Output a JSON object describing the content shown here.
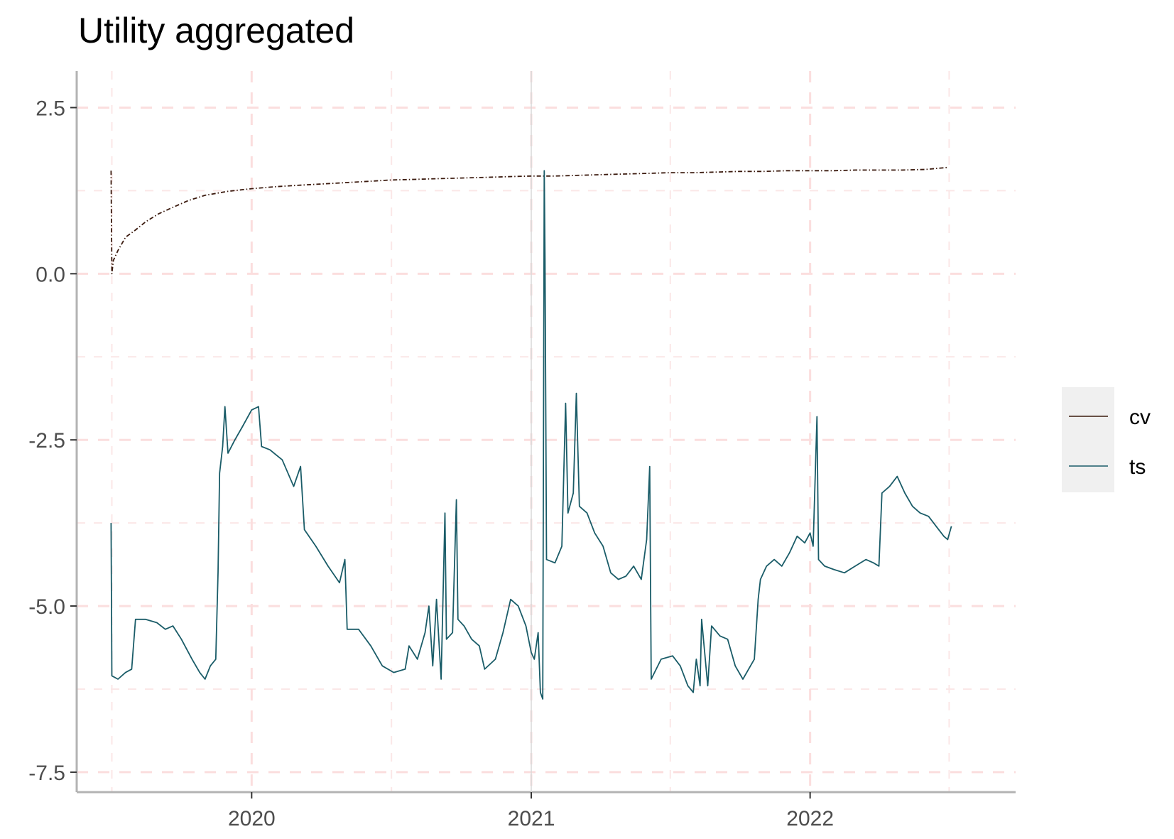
{
  "chart_data": {
    "type": "line",
    "title": "Utility aggregated",
    "xlabel": "",
    "ylabel": "",
    "xlim": [
      "2019-05-17",
      "2022-09-27"
    ],
    "ylim": [
      -7.8,
      3.05
    ],
    "x_ticks": [
      "2020",
      "2021",
      "2022"
    ],
    "y_ticks": [
      2.5,
      0.0,
      -2.5,
      -5.0,
      -7.5
    ],
    "y_tick_labels": [
      "2.5",
      "0.0",
      "-2.5",
      "-5.0",
      "-7.5"
    ],
    "grid": true,
    "legend_position": "right",
    "reference_line_x": "2021-01-01",
    "series": [
      {
        "name": "cv",
        "color": "#3b1a0e",
        "style": "dashdot",
        "points": [
          [
            "2019-07-01",
            1.55
          ],
          [
            "2019-07-02",
            0.0
          ],
          [
            "2019-07-04",
            0.2
          ],
          [
            "2019-07-10",
            0.35
          ],
          [
            "2019-07-20",
            0.55
          ],
          [
            "2019-08-01",
            0.65
          ],
          [
            "2019-08-15",
            0.78
          ],
          [
            "2019-09-01",
            0.9
          ],
          [
            "2019-09-20",
            1.0
          ],
          [
            "2019-10-10",
            1.1
          ],
          [
            "2019-11-01",
            1.18
          ],
          [
            "2019-12-01",
            1.24
          ],
          [
            "2020-01-01",
            1.28
          ],
          [
            "2020-02-01",
            1.31
          ],
          [
            "2020-03-01",
            1.33
          ],
          [
            "2020-04-01",
            1.35
          ],
          [
            "2020-05-01",
            1.37
          ],
          [
            "2020-06-01",
            1.39
          ],
          [
            "2020-07-01",
            1.41
          ],
          [
            "2020-08-01",
            1.42
          ],
          [
            "2020-09-01",
            1.43
          ],
          [
            "2020-10-01",
            1.44
          ],
          [
            "2020-11-01",
            1.45
          ],
          [
            "2020-12-01",
            1.46
          ],
          [
            "2021-01-01",
            1.47
          ],
          [
            "2021-02-01",
            1.47
          ],
          [
            "2021-03-01",
            1.48
          ],
          [
            "2021-04-01",
            1.49
          ],
          [
            "2021-05-01",
            1.5
          ],
          [
            "2021-06-01",
            1.51
          ],
          [
            "2021-07-01",
            1.52
          ],
          [
            "2021-08-01",
            1.52
          ],
          [
            "2021-09-01",
            1.53
          ],
          [
            "2021-10-01",
            1.54
          ],
          [
            "2021-11-01",
            1.54
          ],
          [
            "2021-12-01",
            1.55
          ],
          [
            "2022-01-01",
            1.55
          ],
          [
            "2022-02-01",
            1.55
          ],
          [
            "2022-03-01",
            1.56
          ],
          [
            "2022-04-01",
            1.56
          ],
          [
            "2022-05-01",
            1.56
          ],
          [
            "2022-06-01",
            1.57
          ],
          [
            "2022-07-01",
            1.6
          ]
        ]
      },
      {
        "name": "ts",
        "color": "#1a5c68",
        "style": "solid",
        "points": [
          [
            "2019-07-01",
            -3.75
          ],
          [
            "2019-07-02",
            -6.05
          ],
          [
            "2019-07-10",
            -6.1
          ],
          [
            "2019-07-20",
            -6.0
          ],
          [
            "2019-07-28",
            -5.95
          ],
          [
            "2019-08-02",
            -5.2
          ],
          [
            "2019-08-15",
            -5.2
          ],
          [
            "2019-08-30",
            -5.25
          ],
          [
            "2019-09-10",
            -5.35
          ],
          [
            "2019-09-20",
            -5.3
          ],
          [
            "2019-10-01",
            -5.5
          ],
          [
            "2019-10-15",
            -5.8
          ],
          [
            "2019-10-25",
            -6.0
          ],
          [
            "2019-11-01",
            -6.1
          ],
          [
            "2019-11-08",
            -5.9
          ],
          [
            "2019-11-15",
            -5.8
          ],
          [
            "2019-11-18",
            -4.5
          ],
          [
            "2019-11-20",
            -3.0
          ],
          [
            "2019-11-24",
            -2.6
          ],
          [
            "2019-11-27",
            -2.0
          ],
          [
            "2019-12-01",
            -2.7
          ],
          [
            "2019-12-10",
            -2.5
          ],
          [
            "2019-12-20",
            -2.3
          ],
          [
            "2020-01-01",
            -2.05
          ],
          [
            "2020-01-10",
            -2.0
          ],
          [
            "2020-01-14",
            -2.6
          ],
          [
            "2020-01-25",
            -2.65
          ],
          [
            "2020-02-10",
            -2.8
          ],
          [
            "2020-02-25",
            -3.2
          ],
          [
            "2020-03-05",
            -2.9
          ],
          [
            "2020-03-10",
            -3.85
          ],
          [
            "2020-03-25",
            -4.1
          ],
          [
            "2020-04-10",
            -4.4
          ],
          [
            "2020-04-25",
            -4.65
          ],
          [
            "2020-05-02",
            -4.3
          ],
          [
            "2020-05-05",
            -5.35
          ],
          [
            "2020-05-20",
            -5.35
          ],
          [
            "2020-06-05",
            -5.6
          ],
          [
            "2020-06-20",
            -5.9
          ],
          [
            "2020-07-05",
            -6.0
          ],
          [
            "2020-07-20",
            -5.95
          ],
          [
            "2020-07-25",
            -5.6
          ],
          [
            "2020-08-05",
            -5.8
          ],
          [
            "2020-08-15",
            -5.4
          ],
          [
            "2020-08-20",
            -5.0
          ],
          [
            "2020-08-25",
            -5.9
          ],
          [
            "2020-08-30",
            -4.9
          ],
          [
            "2020-09-05",
            -6.1
          ],
          [
            "2020-09-10",
            -3.6
          ],
          [
            "2020-09-12",
            -5.5
          ],
          [
            "2020-09-20",
            -5.4
          ],
          [
            "2020-09-25",
            -3.4
          ],
          [
            "2020-09-27",
            -5.2
          ],
          [
            "2020-10-05",
            -5.3
          ],
          [
            "2020-10-15",
            -5.5
          ],
          [
            "2020-10-25",
            -5.6
          ],
          [
            "2020-11-01",
            -5.95
          ],
          [
            "2020-11-15",
            -5.8
          ],
          [
            "2020-11-25",
            -5.4
          ],
          [
            "2020-12-05",
            -4.9
          ],
          [
            "2020-12-15",
            -5.0
          ],
          [
            "2020-12-25",
            -5.3
          ],
          [
            "2021-01-01",
            -5.7
          ],
          [
            "2021-01-05",
            -5.8
          ],
          [
            "2021-01-10",
            -5.4
          ],
          [
            "2021-01-13",
            -6.3
          ],
          [
            "2021-01-16",
            -6.4
          ],
          [
            "2021-01-18",
            1.55
          ],
          [
            "2021-01-19",
            0.2
          ],
          [
            "2021-01-21",
            -4.3
          ],
          [
            "2021-02-01",
            -4.35
          ],
          [
            "2021-02-10",
            -4.1
          ],
          [
            "2021-02-15",
            -1.95
          ],
          [
            "2021-02-18",
            -3.6
          ],
          [
            "2021-02-25",
            -3.3
          ],
          [
            "2021-03-01",
            -1.8
          ],
          [
            "2021-03-05",
            -3.5
          ],
          [
            "2021-03-15",
            -3.6
          ],
          [
            "2021-03-25",
            -3.9
          ],
          [
            "2021-04-05",
            -4.1
          ],
          [
            "2021-04-15",
            -4.5
          ],
          [
            "2021-04-25",
            -4.6
          ],
          [
            "2021-05-05",
            -4.55
          ],
          [
            "2021-05-15",
            -4.4
          ],
          [
            "2021-05-25",
            -4.6
          ],
          [
            "2021-06-01",
            -4.0
          ],
          [
            "2021-06-05",
            -2.9
          ],
          [
            "2021-06-07",
            -6.1
          ],
          [
            "2021-06-20",
            -5.8
          ],
          [
            "2021-07-05",
            -5.75
          ],
          [
            "2021-07-15",
            -5.9
          ],
          [
            "2021-07-25",
            -6.2
          ],
          [
            "2021-08-01",
            -6.3
          ],
          [
            "2021-08-05",
            -5.8
          ],
          [
            "2021-08-10",
            -6.2
          ],
          [
            "2021-08-12",
            -5.2
          ],
          [
            "2021-08-20",
            -6.2
          ],
          [
            "2021-08-25",
            -5.3
          ],
          [
            "2021-09-05",
            -5.45
          ],
          [
            "2021-09-15",
            -5.5
          ],
          [
            "2021-09-25",
            -5.9
          ],
          [
            "2021-10-05",
            -6.1
          ],
          [
            "2021-10-15",
            -5.9
          ],
          [
            "2021-10-20",
            -5.8
          ],
          [
            "2021-10-25",
            -4.9
          ],
          [
            "2021-10-28",
            -4.6
          ],
          [
            "2021-11-05",
            -4.4
          ],
          [
            "2021-11-15",
            -4.3
          ],
          [
            "2021-11-25",
            -4.4
          ],
          [
            "2021-12-05",
            -4.2
          ],
          [
            "2021-12-15",
            -3.95
          ],
          [
            "2021-12-25",
            -4.05
          ],
          [
            "2022-01-01",
            -3.9
          ],
          [
            "2022-01-05",
            -4.1
          ],
          [
            "2022-01-10",
            -2.15
          ],
          [
            "2022-01-12",
            -4.3
          ],
          [
            "2022-01-20",
            -4.4
          ],
          [
            "2022-02-01",
            -4.45
          ],
          [
            "2022-02-15",
            -4.5
          ],
          [
            "2022-03-01",
            -4.4
          ],
          [
            "2022-03-15",
            -4.3
          ],
          [
            "2022-03-25",
            -4.35
          ],
          [
            "2022-04-01",
            -4.4
          ],
          [
            "2022-04-05",
            -3.3
          ],
          [
            "2022-04-15",
            -3.2
          ],
          [
            "2022-04-25",
            -3.05
          ],
          [
            "2022-05-05",
            -3.3
          ],
          [
            "2022-05-15",
            -3.5
          ],
          [
            "2022-05-25",
            -3.6
          ],
          [
            "2022-06-05",
            -3.65
          ],
          [
            "2022-06-15",
            -3.8
          ],
          [
            "2022-06-25",
            -3.95
          ],
          [
            "2022-06-30",
            -4.0
          ],
          [
            "2022-07-05",
            -3.8
          ]
        ]
      }
    ]
  }
}
